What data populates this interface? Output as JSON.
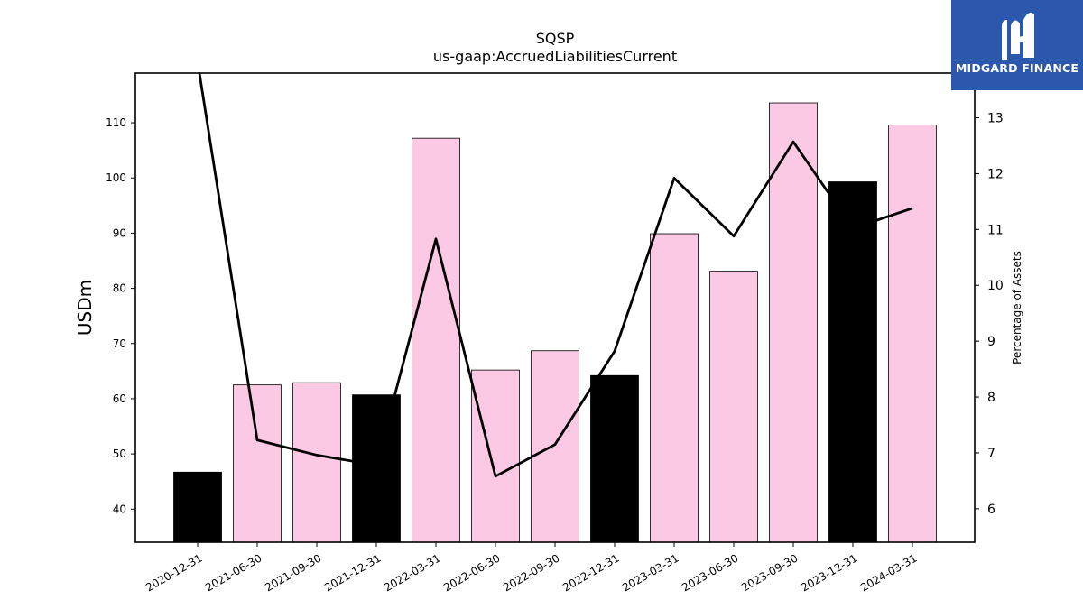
{
  "chart_data": {
    "type": "bar",
    "title": "SQSP",
    "subtitle": "us-gaap:AccruedLiabilitiesCurrent",
    "ylabel": "USDm",
    "y2label": "Percentage of Assets",
    "ylim": [
      34,
      119
    ],
    "y2lim": [
      5.4,
      13.8
    ],
    "yticks": [
      40,
      50,
      60,
      70,
      80,
      90,
      100,
      110
    ],
    "y2ticks": [
      6,
      7,
      8,
      9,
      10,
      11,
      12,
      13
    ],
    "categories": [
      "2020-12-31",
      "2021-06-30",
      "2021-09-30",
      "2021-12-31",
      "2022-03-31",
      "2022-06-30",
      "2022-09-30",
      "2022-12-31",
      "2023-03-31",
      "2023-06-30",
      "2023-09-30",
      "2023-12-31",
      "2024-03-31"
    ],
    "series": [
      {
        "type": "bar",
        "values": [
          46.7,
          62.5,
          62.9,
          60.7,
          107.2,
          65.2,
          68.7,
          64.2,
          89.9,
          83.1,
          113.6,
          99.3,
          109.6
        ],
        "bar_colors": [
          "#000000",
          "#fcc9e4",
          "#fcc9e4",
          "#000000",
          "#fcc9e4",
          "#fcc9e4",
          "#fcc9e4",
          "#000000",
          "#fcc9e4",
          "#fcc9e4",
          "#fcc9e4",
          "#000000",
          "#fcc9e4"
        ]
      },
      {
        "type": "line",
        "axis": "right",
        "color": "#000000",
        "values": [
          14.0,
          7.23,
          6.96,
          6.78,
          10.83,
          6.58,
          7.15,
          8.82,
          11.92,
          10.88,
          12.57,
          11.02,
          11.38
        ]
      }
    ],
    "grid": false,
    "legend": "none"
  },
  "logo": {
    "text": "MIDGARD FINANCE",
    "background": "#2b57ad"
  }
}
